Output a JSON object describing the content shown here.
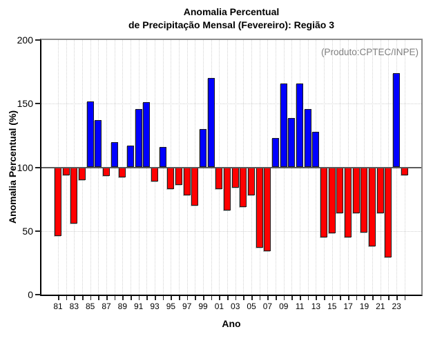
{
  "title": {
    "line1": "Anomalia Percentual",
    "line2": "de Precipitação Mensal (Fevereiro): Região 3"
  },
  "annotation": "(Produto:CPTEC/INPE)",
  "axes": {
    "ylabel": "Anomalia Percentual (%)",
    "xlabel": "Ano",
    "ytick_labels": [
      "0",
      "50",
      "100",
      "150",
      "200"
    ],
    "yticks": [
      0,
      50,
      100,
      150,
      200
    ]
  },
  "chart_data": {
    "type": "bar",
    "title": "Anomalia Percentual de Precipitação Mensal (Fevereiro): Região 3",
    "xlabel": "Ano",
    "ylabel": "Anomalia Percentual (%)",
    "ylim": [
      0,
      200
    ],
    "baseline": 100,
    "gridlines_y": [
      50,
      150
    ],
    "grid_vertical_every_year": true,
    "legend_position": "none",
    "xtick_label_step": 2,
    "colors": {
      "above_baseline": "#0000ff",
      "below_baseline": "#ff0000",
      "annotation": "#808080"
    },
    "categories": [
      "81",
      "82",
      "83",
      "84",
      "85",
      "86",
      "87",
      "88",
      "89",
      "90",
      "91",
      "92",
      "93",
      "94",
      "95",
      "96",
      "97",
      "98",
      "99",
      "00",
      "01",
      "02",
      "03",
      "04",
      "05",
      "06",
      "07",
      "08",
      "09",
      "10",
      "11",
      "12",
      "13",
      "14",
      "15",
      "16",
      "17",
      "18",
      "19",
      "20",
      "21",
      "22",
      "23",
      "24"
    ],
    "values": [
      46,
      94,
      56,
      90,
      152,
      137,
      93,
      120,
      92,
      117,
      146,
      151,
      89,
      116,
      83,
      86,
      78,
      70,
      130,
      170,
      83,
      66,
      84,
      69,
      78,
      37,
      34,
      123,
      166,
      139,
      166,
      146,
      128,
      45,
      48,
      64,
      45,
      64,
      49,
      38,
      64,
      29,
      174,
      94
    ]
  }
}
